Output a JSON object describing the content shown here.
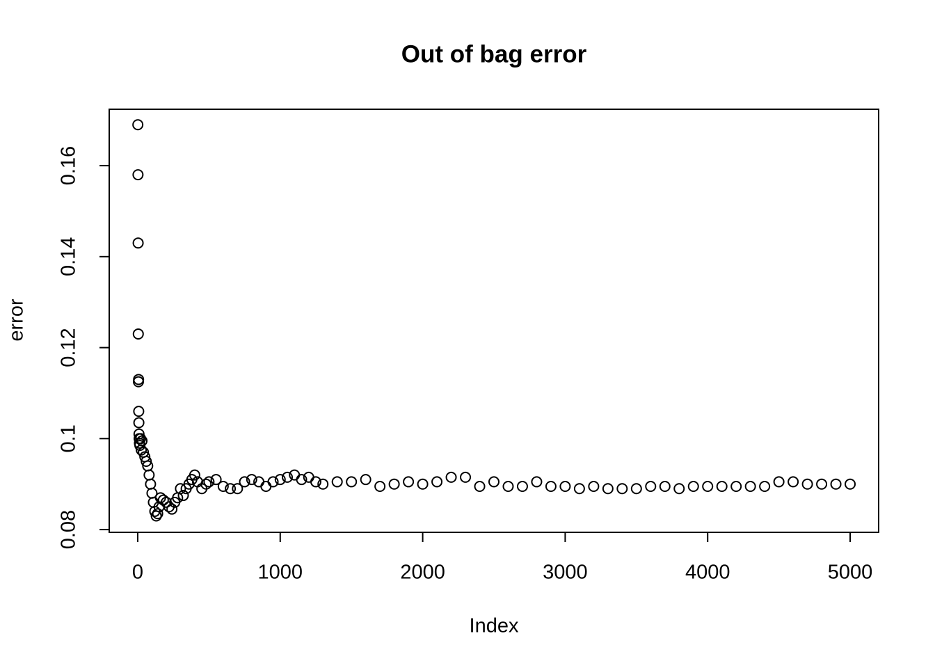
{
  "chart_data": {
    "type": "scatter",
    "title": "Out of bag error",
    "x_label": "Index",
    "y_label": "error",
    "x": [
      1,
      2,
      3,
      4,
      5,
      6,
      7,
      8,
      9,
      10,
      12,
      15,
      20,
      25,
      30,
      40,
      50,
      60,
      70,
      80,
      90,
      100,
      110,
      120,
      130,
      140,
      150,
      160,
      180,
      200,
      220,
      240,
      260,
      280,
      300,
      320,
      340,
      360,
      380,
      400,
      420,
      450,
      480,
      500,
      550,
      600,
      650,
      700,
      750,
      800,
      850,
      900,
      950,
      1000,
      1050,
      1100,
      1150,
      1200,
      1250,
      1300,
      1400,
      1500,
      1600,
      1700,
      1800,
      1900,
      2000,
      2100,
      2200,
      2300,
      2400,
      2500,
      2600,
      2700,
      2800,
      2900,
      3000,
      3100,
      3200,
      3300,
      3400,
      3500,
      3600,
      3700,
      3800,
      3900,
      4000,
      4100,
      4200,
      4300,
      4400,
      4500,
      4600,
      4700,
      4800,
      4900,
      5000
    ],
    "values": [
      0.169,
      0.158,
      0.143,
      0.123,
      0.1125,
      0.113,
      0.106,
      0.1035,
      0.101,
      0.1,
      0.099,
      0.0985,
      0.1,
      0.0975,
      0.0995,
      0.097,
      0.096,
      0.095,
      0.094,
      0.092,
      0.09,
      0.088,
      0.086,
      0.084,
      0.083,
      0.0835,
      0.085,
      0.087,
      0.0865,
      0.086,
      0.085,
      0.0845,
      0.086,
      0.087,
      0.089,
      0.0875,
      0.089,
      0.09,
      0.091,
      0.092,
      0.0905,
      0.089,
      0.09,
      0.0905,
      0.091,
      0.0895,
      0.089,
      0.089,
      0.0905,
      0.091,
      0.0905,
      0.0895,
      0.0905,
      0.091,
      0.0915,
      0.092,
      0.091,
      0.0915,
      0.0905,
      0.09,
      0.0905,
      0.0905,
      0.091,
      0.0895,
      0.09,
      0.0905,
      0.09,
      0.0905,
      0.0915,
      0.0915,
      0.0895,
      0.0905,
      0.0895,
      0.0895,
      0.0905,
      0.0895,
      0.0895,
      0.089,
      0.0895,
      0.089,
      0.089,
      0.089,
      0.0895,
      0.0895,
      0.089,
      0.0895,
      0.0895,
      0.0895,
      0.0895,
      0.0895,
      0.0895,
      0.0905,
      0.0905,
      0.09,
      0.09,
      0.09,
      0.09
    ],
    "color": "#000000",
    "xlim": [
      -200,
      5200
    ],
    "ylim": [
      0.0794,
      0.1724
    ],
    "xticks": [
      0,
      1000,
      2000,
      3000,
      4000,
      5000
    ],
    "yticks": [
      0.08,
      0.1,
      0.12,
      0.14,
      0.16
    ]
  }
}
